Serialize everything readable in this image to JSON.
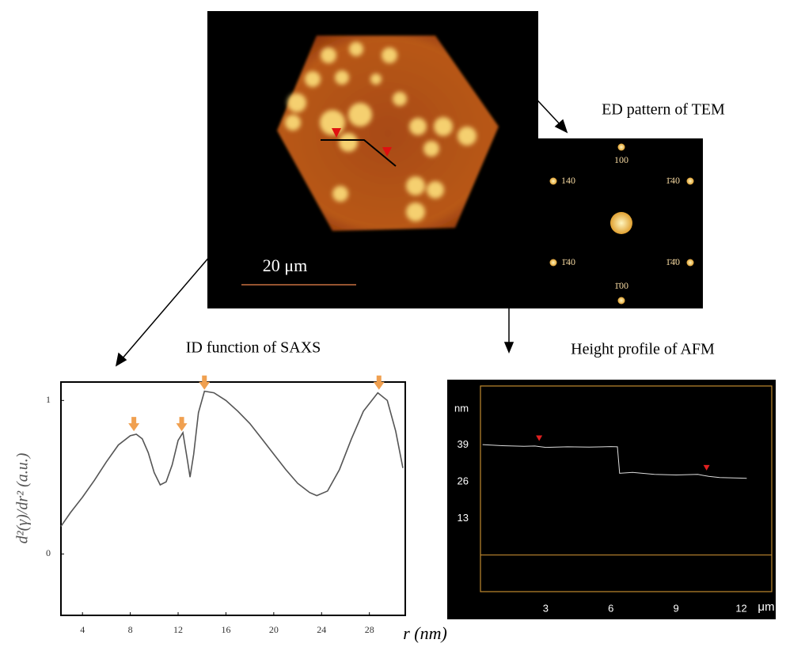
{
  "figure": {
    "tem_label": "ED pattern of TEM",
    "saxs_label": "ID function of SAXS",
    "afm_label": "Height profile of AFM",
    "scale_bar": "20 μm",
    "ed_spots": [
      "100",
      "140",
      "1̄40",
      "1̄4̄0",
      "1̄40",
      "1̄00"
    ]
  },
  "chart_data": [
    {
      "type": "line",
      "x_label": "r (nm)",
      "y_label": "d²(γ)/dr² (a.u.)",
      "x": [
        2.2,
        3,
        4,
        5,
        6,
        7,
        8,
        8.5,
        9,
        9.5,
        10,
        10.5,
        11,
        11.5,
        12,
        12.4,
        12.8,
        13,
        13.3,
        13.7,
        14.2,
        15,
        16,
        17,
        18,
        19,
        20,
        21,
        22,
        23,
        23.6,
        24.5,
        25.5,
        26.5,
        27.5,
        28.7,
        29.5,
        30.2,
        30.8
      ],
      "series": [
        {
          "color": "#555555",
          "values": [
            0.18,
            0.27,
            0.37,
            0.48,
            0.6,
            0.71,
            0.77,
            0.78,
            0.75,
            0.66,
            0.53,
            0.45,
            0.47,
            0.58,
            0.74,
            0.79,
            0.6,
            0.5,
            0.65,
            0.92,
            1.06,
            1.05,
            1.0,
            0.93,
            0.85,
            0.75,
            0.65,
            0.55,
            0.46,
            0.4,
            0.38,
            0.41,
            0.55,
            0.75,
            0.93,
            1.05,
            1.0,
            0.8,
            0.56
          ]
        }
      ],
      "markers": {
        "shape": "arrow",
        "color": "#f0a050",
        "x": [
          8.3,
          12.3,
          14.2,
          28.8
        ],
        "y": [
          0.8,
          0.8,
          1.07,
          1.07
        ]
      },
      "xlim": [
        2.2,
        31
      ],
      "ylim": [
        -0.4,
        1.12
      ],
      "xticks": [
        4,
        8,
        12,
        16,
        20,
        24,
        28
      ],
      "yticks": [
        0,
        1
      ]
    },
    {
      "type": "line",
      "x_label": "μm",
      "y_label": "nm",
      "x": [
        0.1,
        1,
        2,
        2.5,
        3,
        4,
        5,
        6,
        6.3,
        6.4,
        7,
        8,
        9,
        10,
        10.5,
        11,
        12,
        12.25
      ],
      "series": [
        {
          "color": "#dddddd",
          "values": [
            39.2,
            38.8,
            38.6,
            38.7,
            38.2,
            38.4,
            38.3,
            38.5,
            38.4,
            29,
            29.3,
            28.6,
            28.4,
            28.6,
            27.9,
            27.5,
            27.3,
            27.2
          ]
        }
      ],
      "markers": {
        "shape": "triangle",
        "color": "#e02020",
        "x": [
          2.7,
          10.4
        ],
        "y": [
          40.5,
          30
        ]
      },
      "xlim": [
        0,
        13.4
      ],
      "ylim": [
        -13,
        60
      ],
      "xticks": [
        3,
        6,
        9,
        12
      ],
      "yticks": [
        13,
        26,
        39
      ]
    }
  ]
}
